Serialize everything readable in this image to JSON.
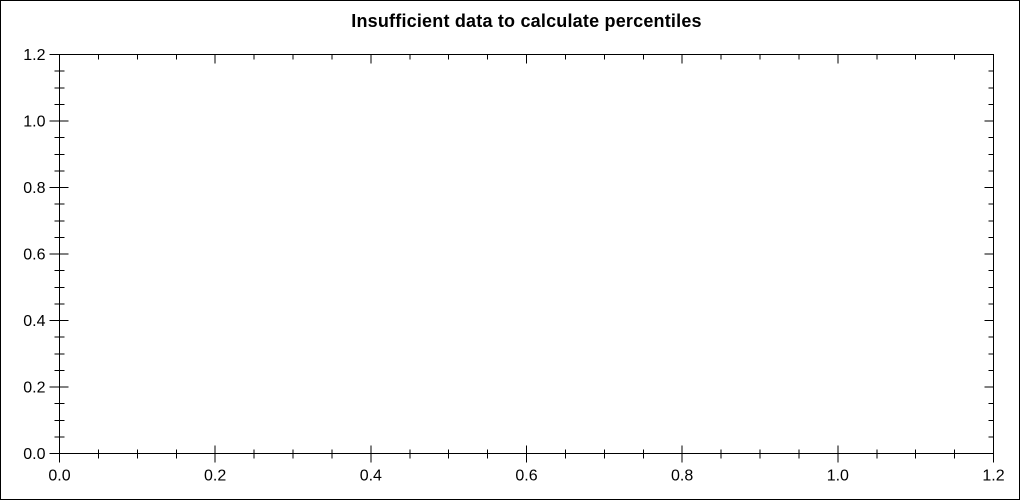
{
  "chart_data": {
    "type": "scatter",
    "title": "Insufficient data to calculate percentiles",
    "series": [],
    "points": [],
    "x_axis": {
      "min": 0.0,
      "max": 1.2,
      "major_step": 0.2,
      "minor_step": 0.05,
      "tick_labels": [
        "0.0",
        "0.2",
        "0.4",
        "0.6",
        "0.8",
        "1.0",
        "1.2"
      ]
    },
    "y_axis": {
      "min": 0.0,
      "max": 1.2,
      "major_step": 0.2,
      "minor_step": 0.05,
      "tick_labels": [
        "0.0",
        "0.2",
        "0.4",
        "0.6",
        "0.8",
        "1.0",
        "1.2"
      ]
    },
    "grid": false,
    "frame": "box",
    "legend": null,
    "colors": {
      "axis": "#000000",
      "text": "#000000",
      "background": "#ffffff"
    }
  }
}
